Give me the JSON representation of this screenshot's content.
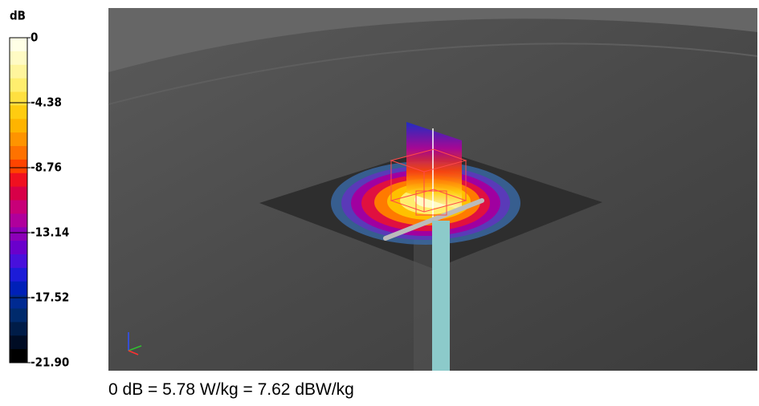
{
  "colorbar": {
    "unit": "dB",
    "lim": [
      -21.9,
      0
    ],
    "ticks": [
      0,
      -4.38,
      -8.76,
      -13.14,
      -17.52,
      {
        "value": -21.9,
        "label": "-21.90"
      }
    ],
    "colors": [
      "#ffffe6",
      "#fffbc4",
      "#fff59c",
      "#ffee6e",
      "#ffe040",
      "#ffcc10",
      "#ffb400",
      "#ff9400",
      "#ff7200",
      "#ff4400",
      "#f01020",
      "#d80048",
      "#c80078",
      "#b0009c",
      "#8c00b8",
      "#6a00cc",
      "#4810dc",
      "#1c1cd8",
      "#0020b8",
      "#002a92",
      "#002a6c",
      "#001c48",
      "#000c24",
      "#000000"
    ]
  },
  "caption": "0 dB = 5.78 W/kg = 7.62 dBW/kg"
}
